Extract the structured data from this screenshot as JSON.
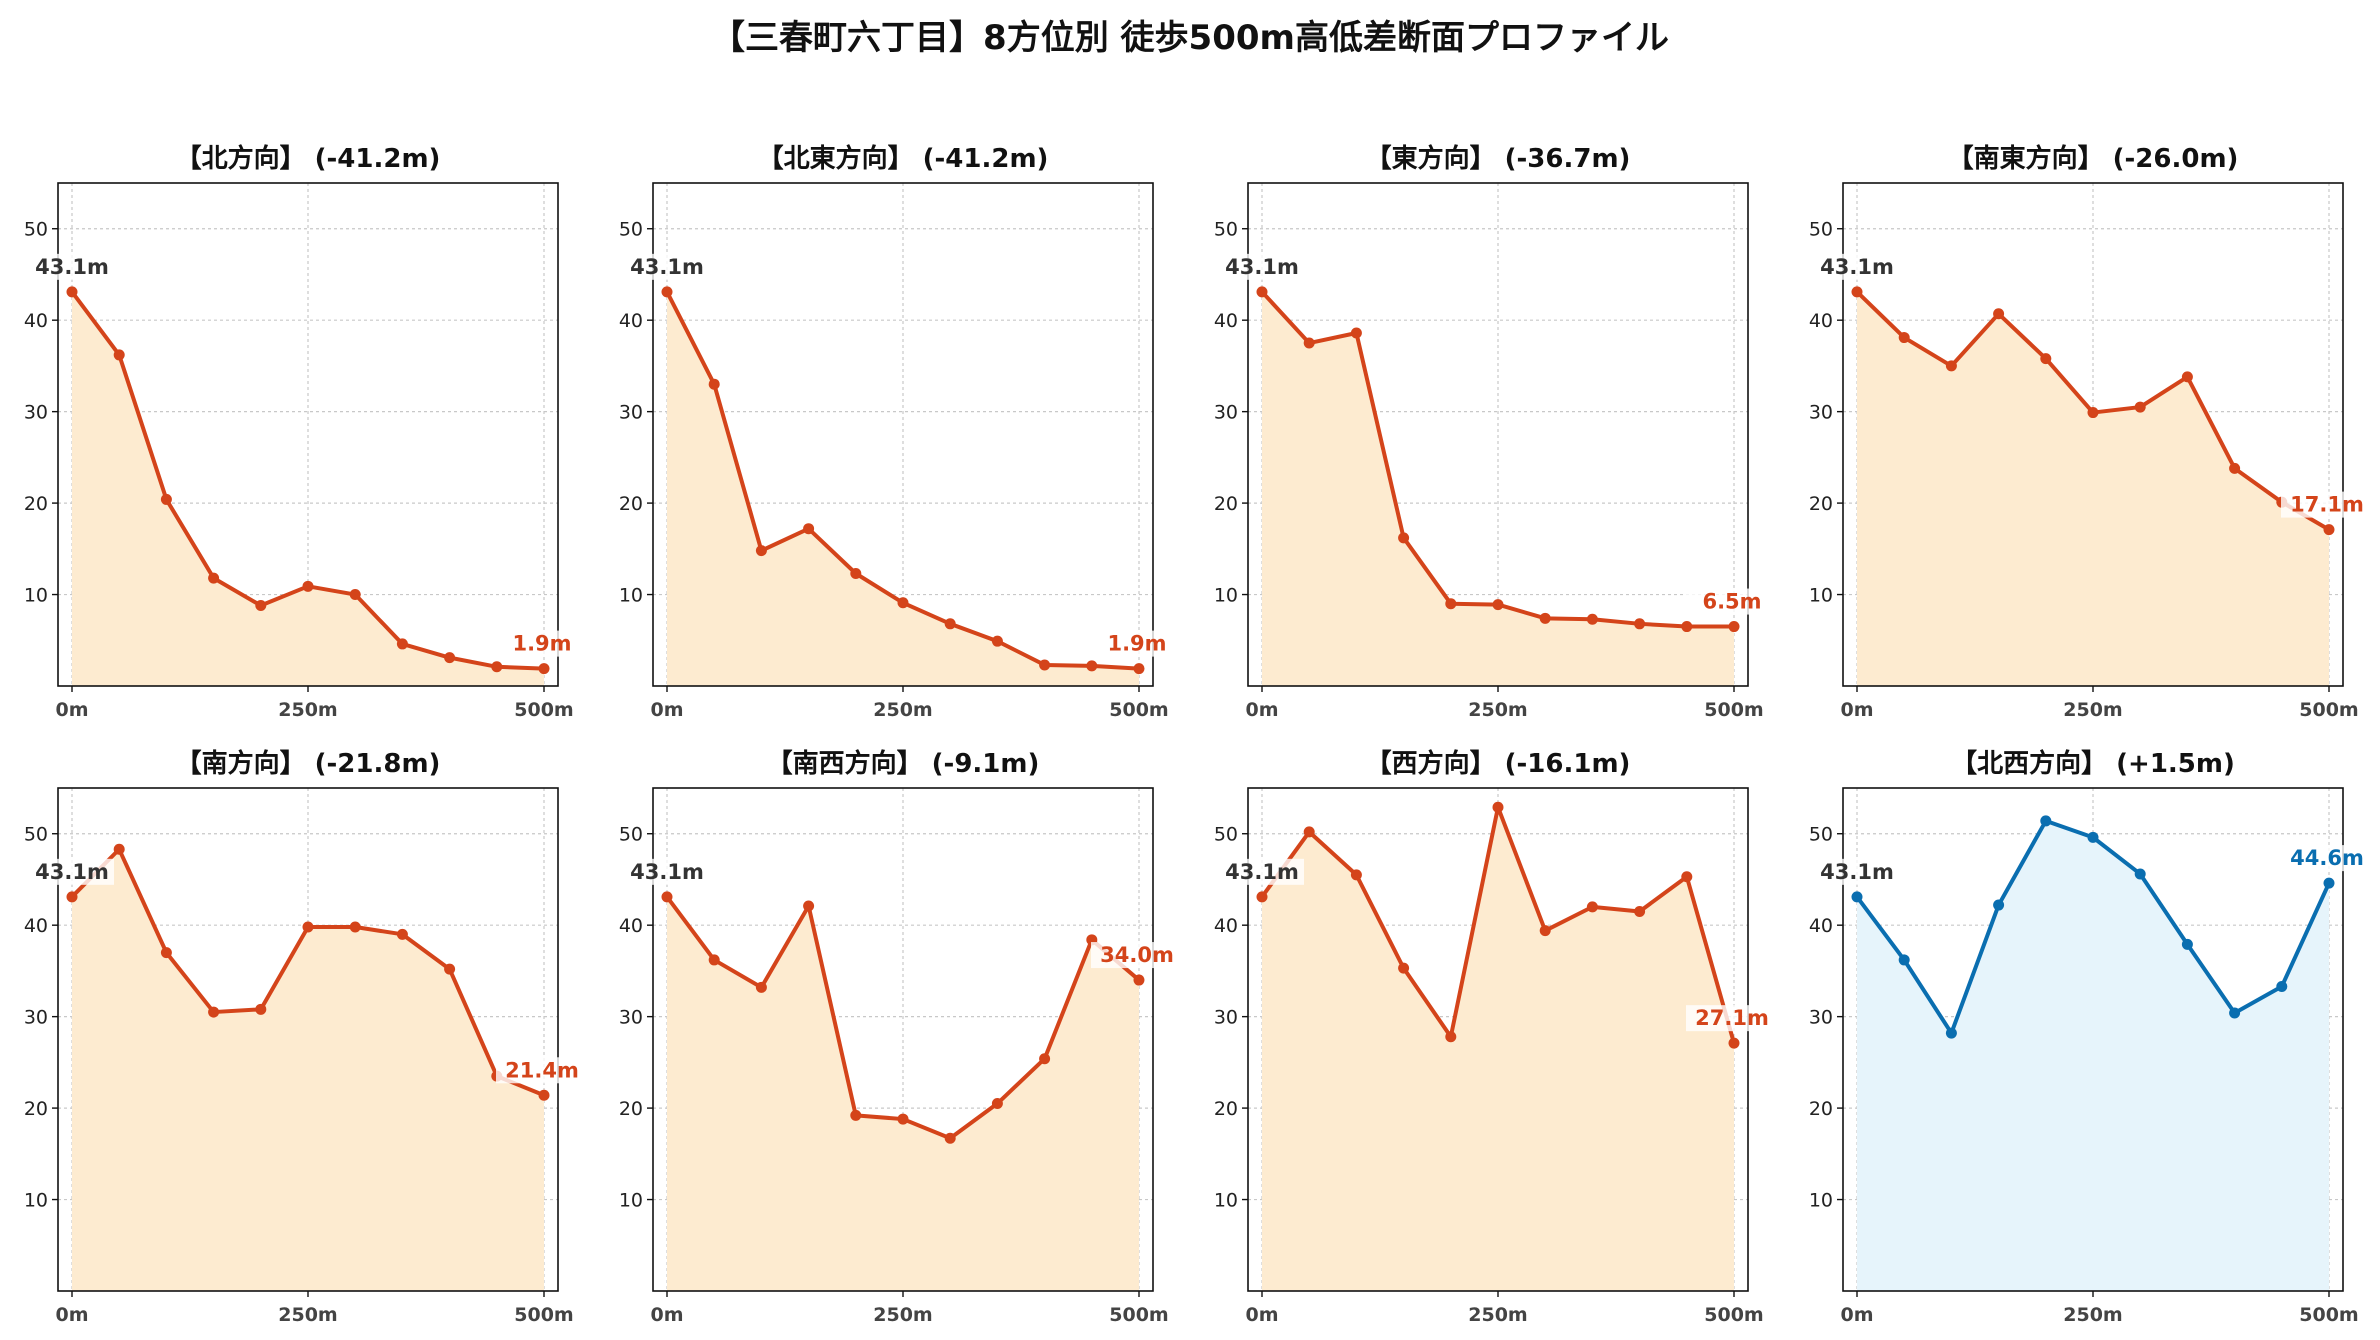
{
  "title": "【三春町六丁目】8方位別 徒歩500m高低差断面プロファイル",
  "colors": {
    "down_line": "#d4441a",
    "down_fill": "#fdebd0",
    "up_line": "#0a6eb0",
    "up_fill": "#e6f4fb",
    "grid": "#c8c8c8",
    "start_label": "#333333"
  },
  "chart_data": [
    {
      "type": "line",
      "title": "【北方向】 (-41.2m)",
      "trend": "down",
      "x": [
        0,
        50,
        100,
        150,
        200,
        250,
        300,
        350,
        400,
        450,
        500
      ],
      "values": [
        43.1,
        36.2,
        20.4,
        11.8,
        8.8,
        10.9,
        10.0,
        4.6,
        3.1,
        2.1,
        1.9
      ],
      "start_label": "43.1m",
      "end_label": "1.9m",
      "ylim": [
        0,
        55
      ],
      "yticks": [
        10,
        20,
        30,
        40,
        50
      ],
      "xticks": [
        "0m",
        "250m",
        "500m"
      ]
    },
    {
      "type": "line",
      "title": "【北東方向】 (-41.2m)",
      "trend": "down",
      "x": [
        0,
        50,
        100,
        150,
        200,
        250,
        300,
        350,
        400,
        450,
        500
      ],
      "values": [
        43.1,
        33.0,
        14.8,
        17.2,
        12.3,
        9.1,
        6.8,
        4.9,
        2.3,
        2.2,
        1.9
      ],
      "start_label": "43.1m",
      "end_label": "1.9m",
      "ylim": [
        0,
        55
      ],
      "yticks": [
        10,
        20,
        30,
        40,
        50
      ],
      "xticks": [
        "0m",
        "250m",
        "500m"
      ]
    },
    {
      "type": "line",
      "title": "【東方向】 (-36.7m)",
      "trend": "down",
      "x": [
        0,
        50,
        100,
        150,
        200,
        250,
        300,
        350,
        400,
        450,
        500
      ],
      "values": [
        43.1,
        37.5,
        38.6,
        16.2,
        9.0,
        8.9,
        7.4,
        7.3,
        6.8,
        6.5,
        6.5
      ],
      "start_label": "43.1m",
      "end_label": "6.5m",
      "ylim": [
        0,
        55
      ],
      "yticks": [
        10,
        20,
        30,
        40,
        50
      ],
      "xticks": [
        "0m",
        "250m",
        "500m"
      ]
    },
    {
      "type": "line",
      "title": "【南東方向】 (-26.0m)",
      "trend": "down",
      "x": [
        0,
        50,
        100,
        150,
        200,
        250,
        300,
        350,
        400,
        450,
        500
      ],
      "values": [
        43.1,
        38.1,
        35.0,
        40.7,
        35.8,
        29.9,
        30.5,
        33.8,
        23.8,
        20.1,
        17.1
      ],
      "start_label": "43.1m",
      "end_label": "17.1m",
      "ylim": [
        0,
        55
      ],
      "yticks": [
        10,
        20,
        30,
        40,
        50
      ],
      "xticks": [
        "0m",
        "250m",
        "500m"
      ]
    },
    {
      "type": "line",
      "title": "【南方向】 (-21.8m)",
      "trend": "down",
      "x": [
        0,
        50,
        100,
        150,
        200,
        250,
        300,
        350,
        400,
        450,
        500
      ],
      "values": [
        43.1,
        48.3,
        37.0,
        30.5,
        30.8,
        39.8,
        39.8,
        39.0,
        35.2,
        23.5,
        21.4
      ],
      "start_label": "43.1m",
      "end_label": "21.4m",
      "ylim": [
        0,
        55
      ],
      "yticks": [
        10,
        20,
        30,
        40,
        50
      ],
      "xticks": [
        "0m",
        "250m",
        "500m"
      ]
    },
    {
      "type": "line",
      "title": "【南西方向】 (-9.1m)",
      "trend": "down",
      "x": [
        0,
        50,
        100,
        150,
        200,
        250,
        300,
        350,
        400,
        450,
        500
      ],
      "values": [
        43.1,
        36.2,
        33.2,
        42.1,
        19.2,
        18.8,
        16.7,
        20.5,
        25.4,
        38.4,
        34.0
      ],
      "start_label": "43.1m",
      "end_label": "34.0m",
      "ylim": [
        0,
        55
      ],
      "yticks": [
        10,
        20,
        30,
        40,
        50
      ],
      "xticks": [
        "0m",
        "250m",
        "500m"
      ]
    },
    {
      "type": "line",
      "title": "【西方向】 (-16.1m)",
      "trend": "down",
      "x": [
        0,
        50,
        100,
        150,
        200,
        250,
        300,
        350,
        400,
        450,
        500
      ],
      "values": [
        43.1,
        50.2,
        45.5,
        35.3,
        27.8,
        52.9,
        39.4,
        42.0,
        41.5,
        45.3,
        27.1
      ],
      "start_label": "43.1m",
      "end_label": "27.1m",
      "ylim": [
        0,
        55
      ],
      "yticks": [
        10,
        20,
        30,
        40,
        50
      ],
      "xticks": [
        "0m",
        "250m",
        "500m"
      ]
    },
    {
      "type": "line",
      "title": "【北西方向】 (+1.5m)",
      "trend": "up",
      "x": [
        0,
        50,
        100,
        150,
        200,
        250,
        300,
        350,
        400,
        450,
        500
      ],
      "values": [
        43.1,
        36.2,
        28.2,
        42.2,
        51.4,
        49.6,
        45.6,
        37.9,
        30.4,
        33.3,
        44.6
      ],
      "start_label": "43.1m",
      "end_label": "44.6m",
      "ylim": [
        0,
        55
      ],
      "yticks": [
        10,
        20,
        30,
        40,
        50
      ],
      "xticks": [
        "0m",
        "250m",
        "500m"
      ]
    }
  ]
}
